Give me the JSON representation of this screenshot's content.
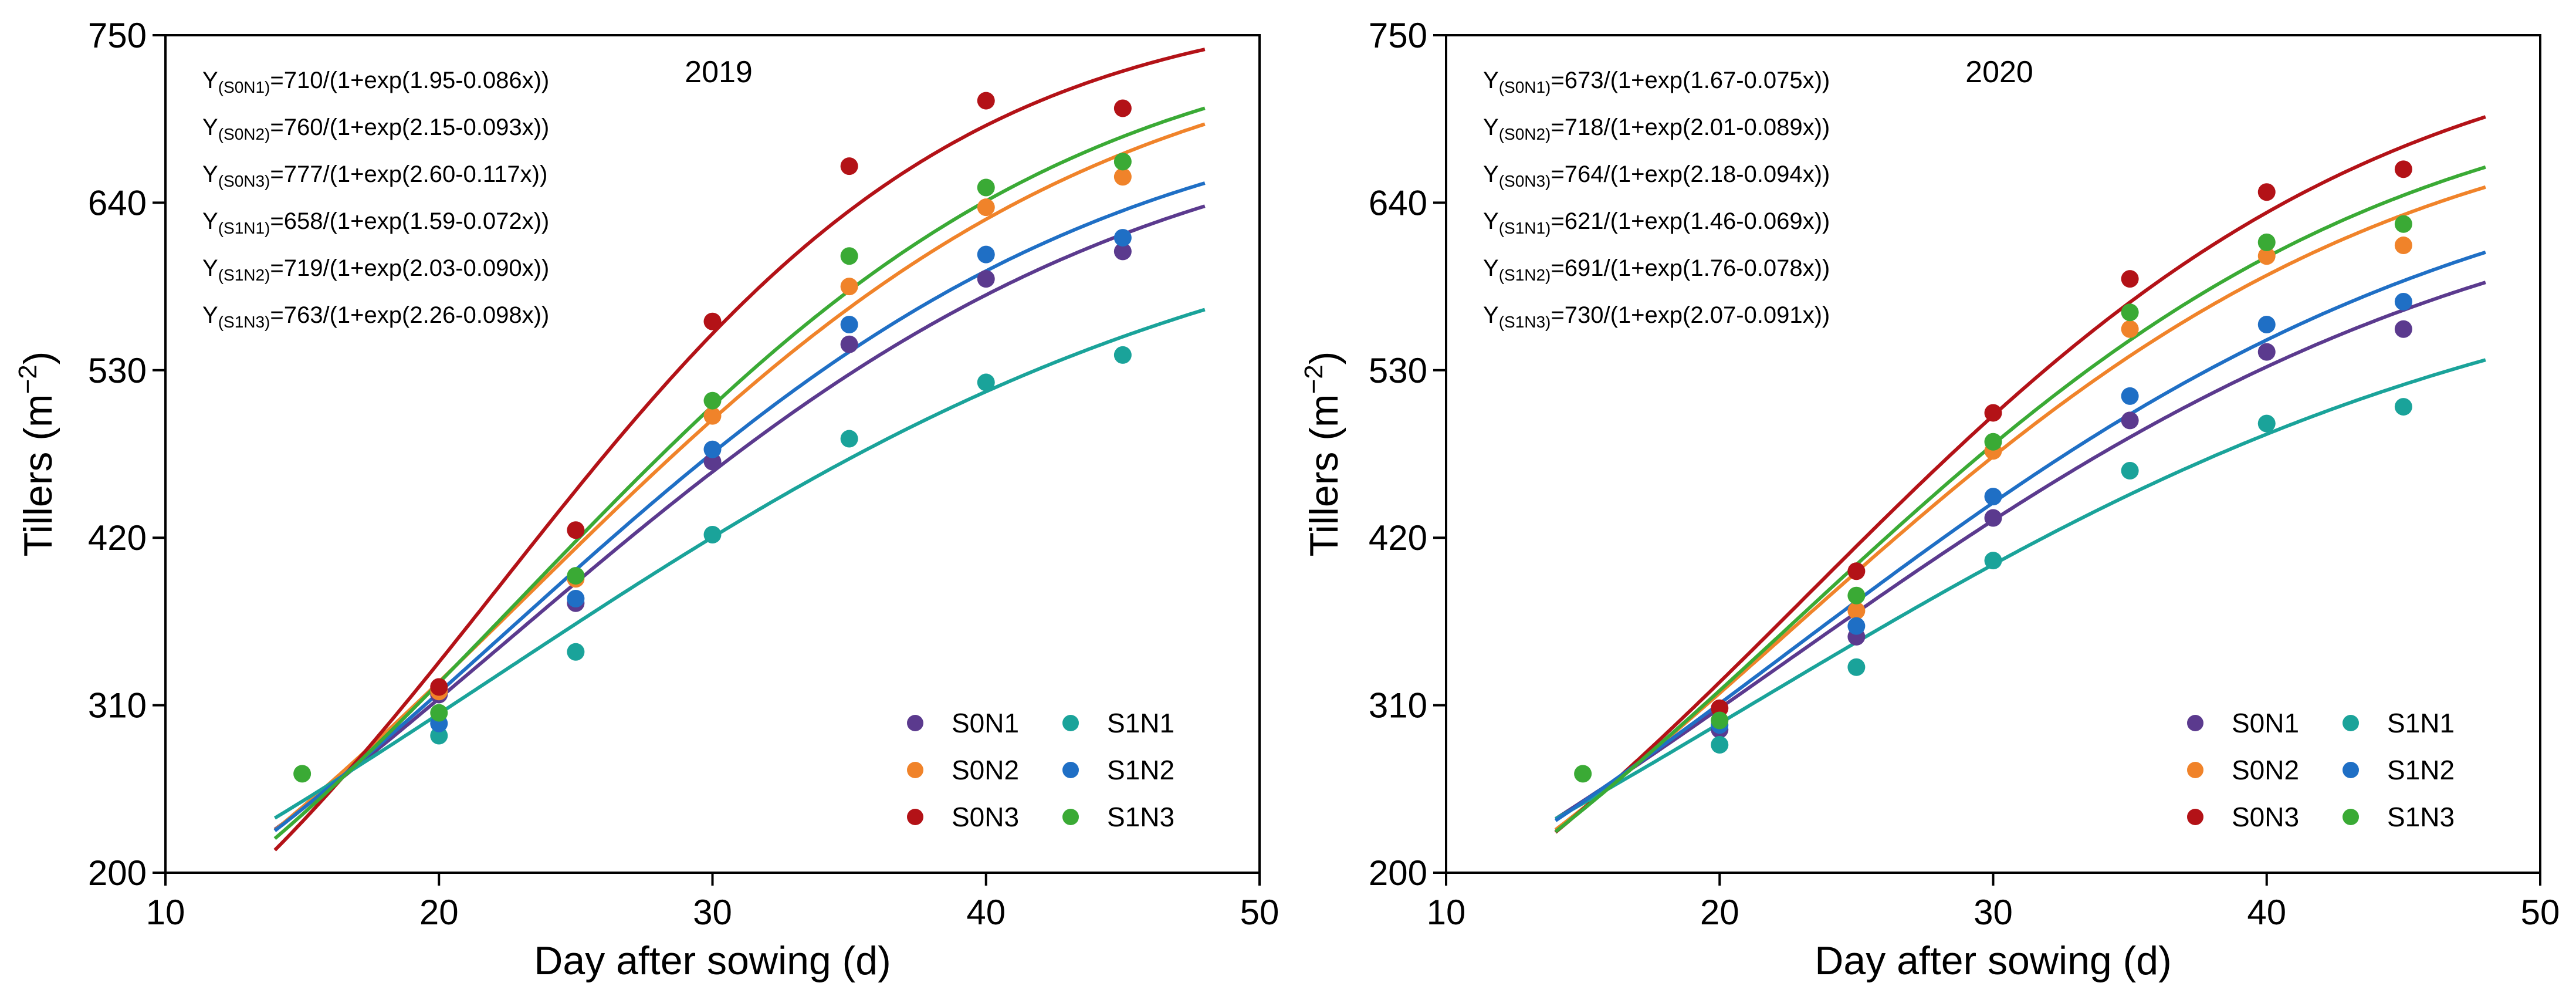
{
  "chart_data": [
    {
      "type": "scatter",
      "title": "2019",
      "xlabel": "Day after sowing (d)",
      "ylabel_main": "Tillers (m",
      "ylabel_sup": "−2",
      "ylabel_close": ")",
      "xlim": [
        10,
        50
      ],
      "ylim": [
        200,
        750
      ],
      "xticks": [
        10,
        20,
        30,
        40,
        50
      ],
      "yticks": [
        200,
        310,
        420,
        530,
        640,
        750
      ],
      "curve_x_range": [
        14,
        48
      ],
      "x": [
        15,
        20,
        25,
        30,
        35,
        40,
        45
      ],
      "series": [
        {
          "name": "S0N1",
          "color": "#5b3a8e",
          "values": [
            null,
            317,
            377,
            470,
            547,
            590,
            608
          ],
          "model": {
            "A": 710,
            "B": 1.95,
            "C": 0.086
          }
        },
        {
          "name": "S0N2",
          "color": "#f0832a",
          "values": [
            null,
            319,
            393,
            500,
            585,
            637,
            657
          ],
          "model": {
            "A": 760,
            "B": 2.15,
            "C": 0.093
          }
        },
        {
          "name": "S0N3",
          "color": "#b31217",
          "values": [
            null,
            322,
            425,
            562,
            664,
            707,
            702
          ],
          "model": {
            "A": 777,
            "B": 2.6,
            "C": 0.117
          }
        },
        {
          "name": "S1N1",
          "color": "#1aa39a",
          "values": [
            null,
            290,
            345,
            422,
            485,
            522,
            540
          ],
          "model": {
            "A": 658,
            "B": 1.59,
            "C": 0.072
          }
        },
        {
          "name": "S1N2",
          "color": "#1f6fc5",
          "values": [
            null,
            298,
            380,
            478,
            560,
            606,
            617
          ],
          "model": {
            "A": 719,
            "B": 2.03,
            "C": 0.09
          }
        },
        {
          "name": "S1N3",
          "color": "#3aaa35",
          "values": [
            265,
            305,
            395,
            510,
            605,
            650,
            667
          ],
          "model": {
            "A": 763,
            "B": 2.26,
            "C": 0.098
          }
        }
      ],
      "equations": [
        {
          "pre": "Y",
          "sub": "(S0N1)",
          "post": "=710/(1+exp(1.95-0.086x))"
        },
        {
          "pre": "Y",
          "sub": "(S0N2)",
          "post": "=760/(1+exp(2.15-0.093x))"
        },
        {
          "pre": "Y",
          "sub": "(S0N3)",
          "post": "=777/(1+exp(2.60-0.117x))"
        },
        {
          "pre": "Y",
          "sub": "(S1N1)",
          "post": "=658/(1+exp(1.59-0.072x))"
        },
        {
          "pre": "Y",
          "sub": "(S1N2)",
          "post": "=719/(1+exp(2.03-0.090x))"
        },
        {
          "pre": "Y",
          "sub": "(S1N3)",
          "post": "=763/(1+exp(2.26-0.098x))"
        }
      ],
      "legend_position": "bottom-right"
    },
    {
      "type": "scatter",
      "title": "2020",
      "xlabel": "Day after sowing (d)",
      "ylabel_main": "Tillers (m",
      "ylabel_sup": "−2",
      "ylabel_close": ")",
      "xlim": [
        10,
        50
      ],
      "ylim": [
        200,
        750
      ],
      "xticks": [
        10,
        20,
        30,
        40,
        50
      ],
      "yticks": [
        200,
        310,
        420,
        530,
        640,
        750
      ],
      "curve_x_range": [
        14,
        48
      ],
      "x": [
        15,
        20,
        25,
        30,
        35,
        40,
        45
      ],
      "series": [
        {
          "name": "S0N1",
          "color": "#5b3a8e",
          "values": [
            null,
            294,
            355,
            433,
            497,
            542,
            557
          ],
          "model": {
            "A": 673,
            "B": 1.67,
            "C": 0.075
          }
        },
        {
          "name": "S0N2",
          "color": "#f0832a",
          "values": [
            null,
            300,
            372,
            477,
            557,
            605,
            612
          ],
          "model": {
            "A": 718,
            "B": 2.01,
            "C": 0.089
          }
        },
        {
          "name": "S0N3",
          "color": "#b31217",
          "values": [
            null,
            308,
            398,
            502,
            590,
            647,
            662
          ],
          "model": {
            "A": 764,
            "B": 2.18,
            "C": 0.094
          }
        },
        {
          "name": "S1N1",
          "color": "#1aa39a",
          "values": [
            null,
            284,
            335,
            405,
            464,
            495,
            506
          ],
          "model": {
            "A": 621,
            "B": 1.46,
            "C": 0.069
          }
        },
        {
          "name": "S1N2",
          "color": "#1f6fc5",
          "values": [
            null,
            297,
            362,
            447,
            513,
            560,
            575
          ],
          "model": {
            "A": 691,
            "B": 1.76,
            "C": 0.078
          }
        },
        {
          "name": "S1N3",
          "color": "#3aaa35",
          "values": [
            265,
            300,
            382,
            483,
            568,
            614,
            626
          ],
          "model": {
            "A": 730,
            "B": 2.07,
            "C": 0.091
          }
        }
      ],
      "equations": [
        {
          "pre": "Y",
          "sub": "(S0N1)",
          "post": "=673/(1+exp(1.67-0.075x))"
        },
        {
          "pre": "Y",
          "sub": "(S0N2)",
          "post": "=718/(1+exp(2.01-0.089x))"
        },
        {
          "pre": "Y",
          "sub": "(S0N3)",
          "post": "=764/(1+exp(2.18-0.094x))"
        },
        {
          "pre": "Y",
          "sub": "(S1N1)",
          "post": "=621/(1+exp(1.46-0.069x))"
        },
        {
          "pre": "Y",
          "sub": "(S1N2)",
          "post": "=691/(1+exp(1.76-0.078x))"
        },
        {
          "pre": "Y",
          "sub": "(S1N3)",
          "post": "=730/(1+exp(2.07-0.091x))"
        }
      ],
      "legend_position": "bottom-right"
    }
  ]
}
